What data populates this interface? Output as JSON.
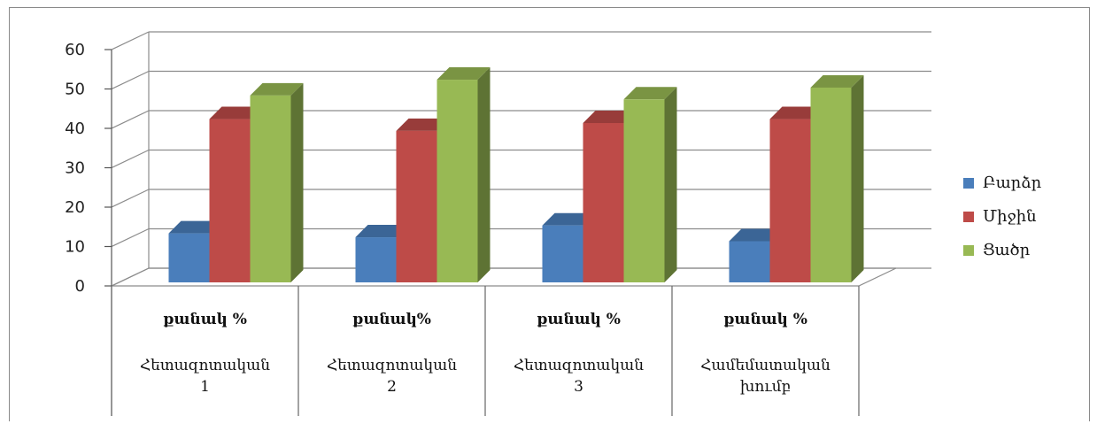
{
  "chart_data": {
    "type": "bar",
    "ylim": [
      0,
      60
    ],
    "yticks": [
      "0",
      "10",
      "20",
      "30",
      "40",
      "50",
      "60"
    ],
    "grid": true,
    "legend_placement": "right",
    "categories": [
      {
        "top": "քանակ %",
        "bottom": [
          "Հետազոտական",
          "1"
        ]
      },
      {
        "top": "քանակ%",
        "bottom": [
          "Հետազոտական",
          "2"
        ]
      },
      {
        "top": "քանակ %",
        "bottom": [
          "Հետազոտական",
          "3"
        ]
      },
      {
        "top": "քանակ   %",
        "bottom": [
          "Համեմատական",
          "խումբ"
        ]
      }
    ],
    "series": [
      {
        "name": "Բարձր",
        "color": "#4a7ebb",
        "values": [
          12,
          11,
          14,
          10
        ]
      },
      {
        "name": "Միջին",
        "color": "#be4b48",
        "values": [
          41,
          38,
          40,
          41
        ]
      },
      {
        "name": "Ցածր",
        "color": "#98b954",
        "values": [
          47,
          51,
          46,
          49
        ]
      }
    ]
  }
}
